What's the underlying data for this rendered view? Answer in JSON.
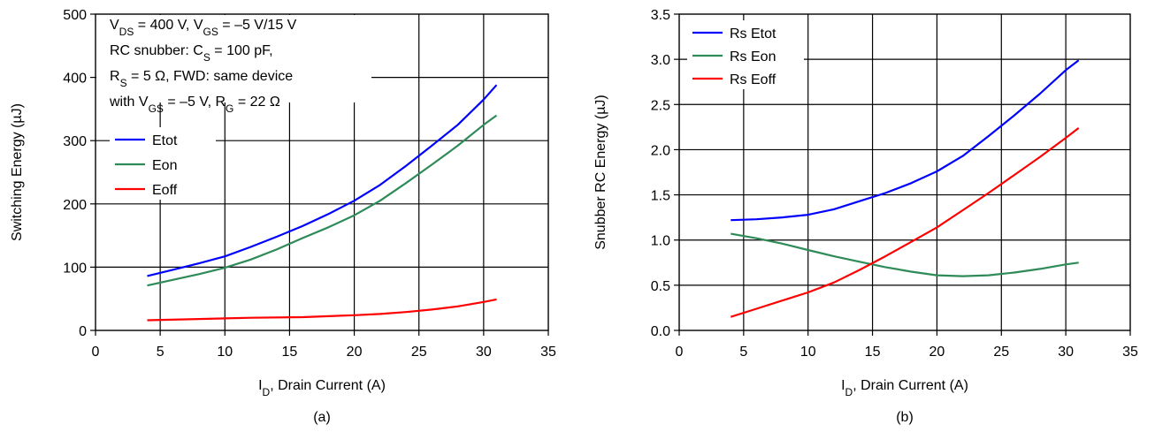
{
  "chart_data": [
    {
      "type": "line",
      "panel_label": "(a)",
      "xlabel": "I",
      "xlabel_sub": "D",
      "xlabel_rest": ", Drain Current (A)",
      "ylabel": "Switching Energy (µJ)",
      "xlim": [
        0,
        35
      ],
      "ylim": [
        0,
        500
      ],
      "xticks": [
        "0",
        "5",
        "10",
        "15",
        "20",
        "25",
        "30",
        "35"
      ],
      "yticks": [
        "0",
        "100",
        "200",
        "300",
        "400",
        "500"
      ],
      "grid": true,
      "legend": "left",
      "annotation": [
        {
          "parts": [
            {
              "t": "V"
            },
            {
              "t": "DS",
              "sub": true
            },
            {
              "t": " = 400 V, V"
            },
            {
              "t": "GS",
              "sub": true
            },
            {
              "t": " = –5 V/15 V"
            }
          ]
        },
        {
          "parts": [
            {
              "t": "RC snubber: C"
            },
            {
              "t": "S",
              "sub": true
            },
            {
              "t": " = 100 pF,"
            }
          ]
        },
        {
          "parts": [
            {
              "t": "R"
            },
            {
              "t": "S",
              "sub": true
            },
            {
              "t": " = 5 Ω, FWD: same device"
            }
          ]
        },
        {
          "parts": [
            {
              "t": "with V"
            },
            {
              "t": "GS",
              "sub": true
            },
            {
              "t": " = –5 V, R"
            },
            {
              "t": "G",
              "sub": true
            },
            {
              "t": " = 22 Ω"
            }
          ]
        }
      ],
      "series": [
        {
          "name": "Etot",
          "color": "#0000ff",
          "x": [
            4,
            6,
            8,
            10,
            12,
            14,
            16,
            18,
            20,
            22,
            24,
            26,
            28,
            30,
            31
          ],
          "y": [
            86,
            96,
            106,
            117,
            132,
            148,
            165,
            184,
            205,
            230,
            260,
            292,
            325,
            365,
            388
          ]
        },
        {
          "name": "Eon",
          "color": "#2e8b57",
          "x": [
            4,
            6,
            8,
            10,
            12,
            14,
            16,
            18,
            20,
            22,
            24,
            26,
            28,
            30,
            31
          ],
          "y": [
            71,
            80,
            89,
            99,
            112,
            128,
            146,
            163,
            182,
            205,
            233,
            262,
            292,
            325,
            340
          ]
        },
        {
          "name": "Eoff",
          "color": "#ff0000",
          "x": [
            4,
            8,
            12,
            16,
            20,
            22,
            24,
            26,
            28,
            30,
            31
          ],
          "y": [
            16,
            18,
            20,
            21,
            24,
            26,
            29,
            33,
            38,
            45,
            49
          ]
        }
      ]
    },
    {
      "type": "line",
      "panel_label": "(b)",
      "xlabel": "I",
      "xlabel_sub": "D",
      "xlabel_rest": ", Drain Current (A)",
      "ylabel": "Snubber RC Energy (µJ)",
      "xlim": [
        0,
        35
      ],
      "ylim": [
        0,
        3.5
      ],
      "xticks": [
        "0",
        "5",
        "10",
        "15",
        "20",
        "25",
        "30",
        "35"
      ],
      "yticks": [
        "0.0",
        "0.5",
        "1.0",
        "1.5",
        "2.0",
        "2.5",
        "3.0",
        "3.5"
      ],
      "grid": true,
      "legend": "top-left",
      "series": [
        {
          "name": "Rs Etot",
          "color": "#0000ff",
          "x": [
            4,
            6,
            8,
            10,
            12,
            14,
            16,
            18,
            20,
            22,
            24,
            26,
            28,
            30,
            31
          ],
          "y": [
            1.22,
            1.23,
            1.25,
            1.28,
            1.34,
            1.43,
            1.52,
            1.63,
            1.76,
            1.93,
            2.15,
            2.38,
            2.62,
            2.88,
            2.99
          ]
        },
        {
          "name": "Rs Eon",
          "color": "#2e8b57",
          "x": [
            4,
            6,
            8,
            10,
            12,
            14,
            16,
            18,
            20,
            22,
            24,
            26,
            28,
            30,
            31
          ],
          "y": [
            1.07,
            1.02,
            0.96,
            0.89,
            0.82,
            0.76,
            0.7,
            0.65,
            0.61,
            0.6,
            0.61,
            0.64,
            0.68,
            0.73,
            0.75
          ]
        },
        {
          "name": "Rs Eoff",
          "color": "#ff0000",
          "x": [
            4,
            6,
            8,
            10,
            12,
            14,
            16,
            18,
            20,
            22,
            24,
            26,
            28,
            30,
            31
          ],
          "y": [
            0.15,
            0.24,
            0.33,
            0.42,
            0.53,
            0.67,
            0.82,
            0.98,
            1.14,
            1.33,
            1.52,
            1.72,
            1.92,
            2.13,
            2.24
          ]
        }
      ]
    }
  ]
}
